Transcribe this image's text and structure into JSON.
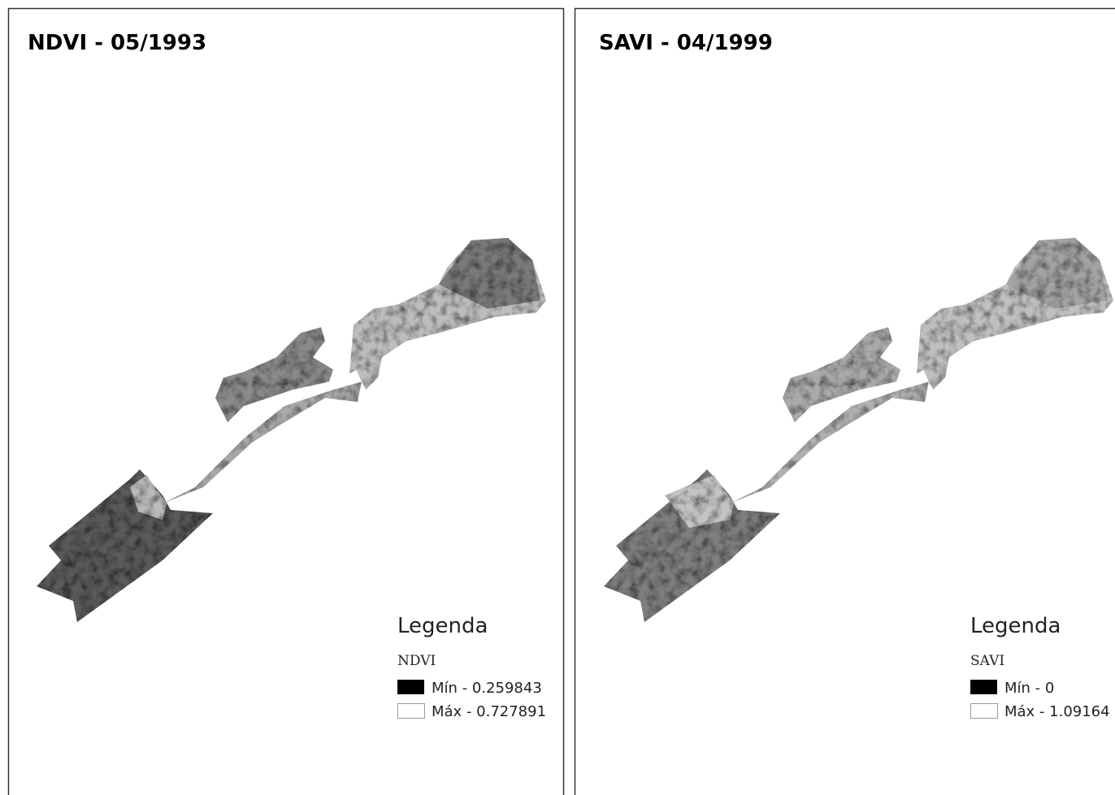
{
  "panels": [
    {
      "title": "NDVI - 05/1993",
      "legend": {
        "heading": "Legenda",
        "layer": "NDVI",
        "min": "Mín - 0.259843",
        "max": "Máx - 0.727891"
      }
    },
    {
      "title": "SAVI - 04/1999",
      "legend": {
        "heading": "Legenda",
        "layer": "SAVI",
        "min": "Mín - 0",
        "max": "Máx - 1.09164"
      }
    }
  ]
}
